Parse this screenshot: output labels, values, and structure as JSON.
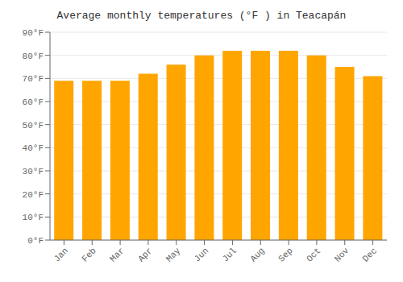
{
  "chart_data": {
    "type": "bar",
    "title": "Average monthly temperatures (°F ) in Teacapán",
    "categories": [
      "Jan",
      "Feb",
      "Mar",
      "Apr",
      "May",
      "Jun",
      "Jul",
      "Aug",
      "Sep",
      "Oct",
      "Nov",
      "Dec"
    ],
    "values": [
      69,
      69,
      69,
      72,
      76,
      80,
      82,
      82,
      82,
      80,
      75,
      71
    ],
    "color": "#FFA500",
    "ylim": [
      0,
      90
    ],
    "yticks": [
      {
        "value": 0,
        "label": "0°F"
      },
      {
        "value": 10,
        "label": "10°F"
      },
      {
        "value": 20,
        "label": "20°F"
      },
      {
        "value": 30,
        "label": "30°F"
      },
      {
        "value": 40,
        "label": "40°F"
      },
      {
        "value": 50,
        "label": "50°F"
      },
      {
        "value": 60,
        "label": "60°F"
      },
      {
        "value": 70,
        "label": "70°F"
      },
      {
        "value": 80,
        "label": "80°F"
      },
      {
        "value": 90,
        "label": "90°F"
      }
    ],
    "grid": true
  }
}
